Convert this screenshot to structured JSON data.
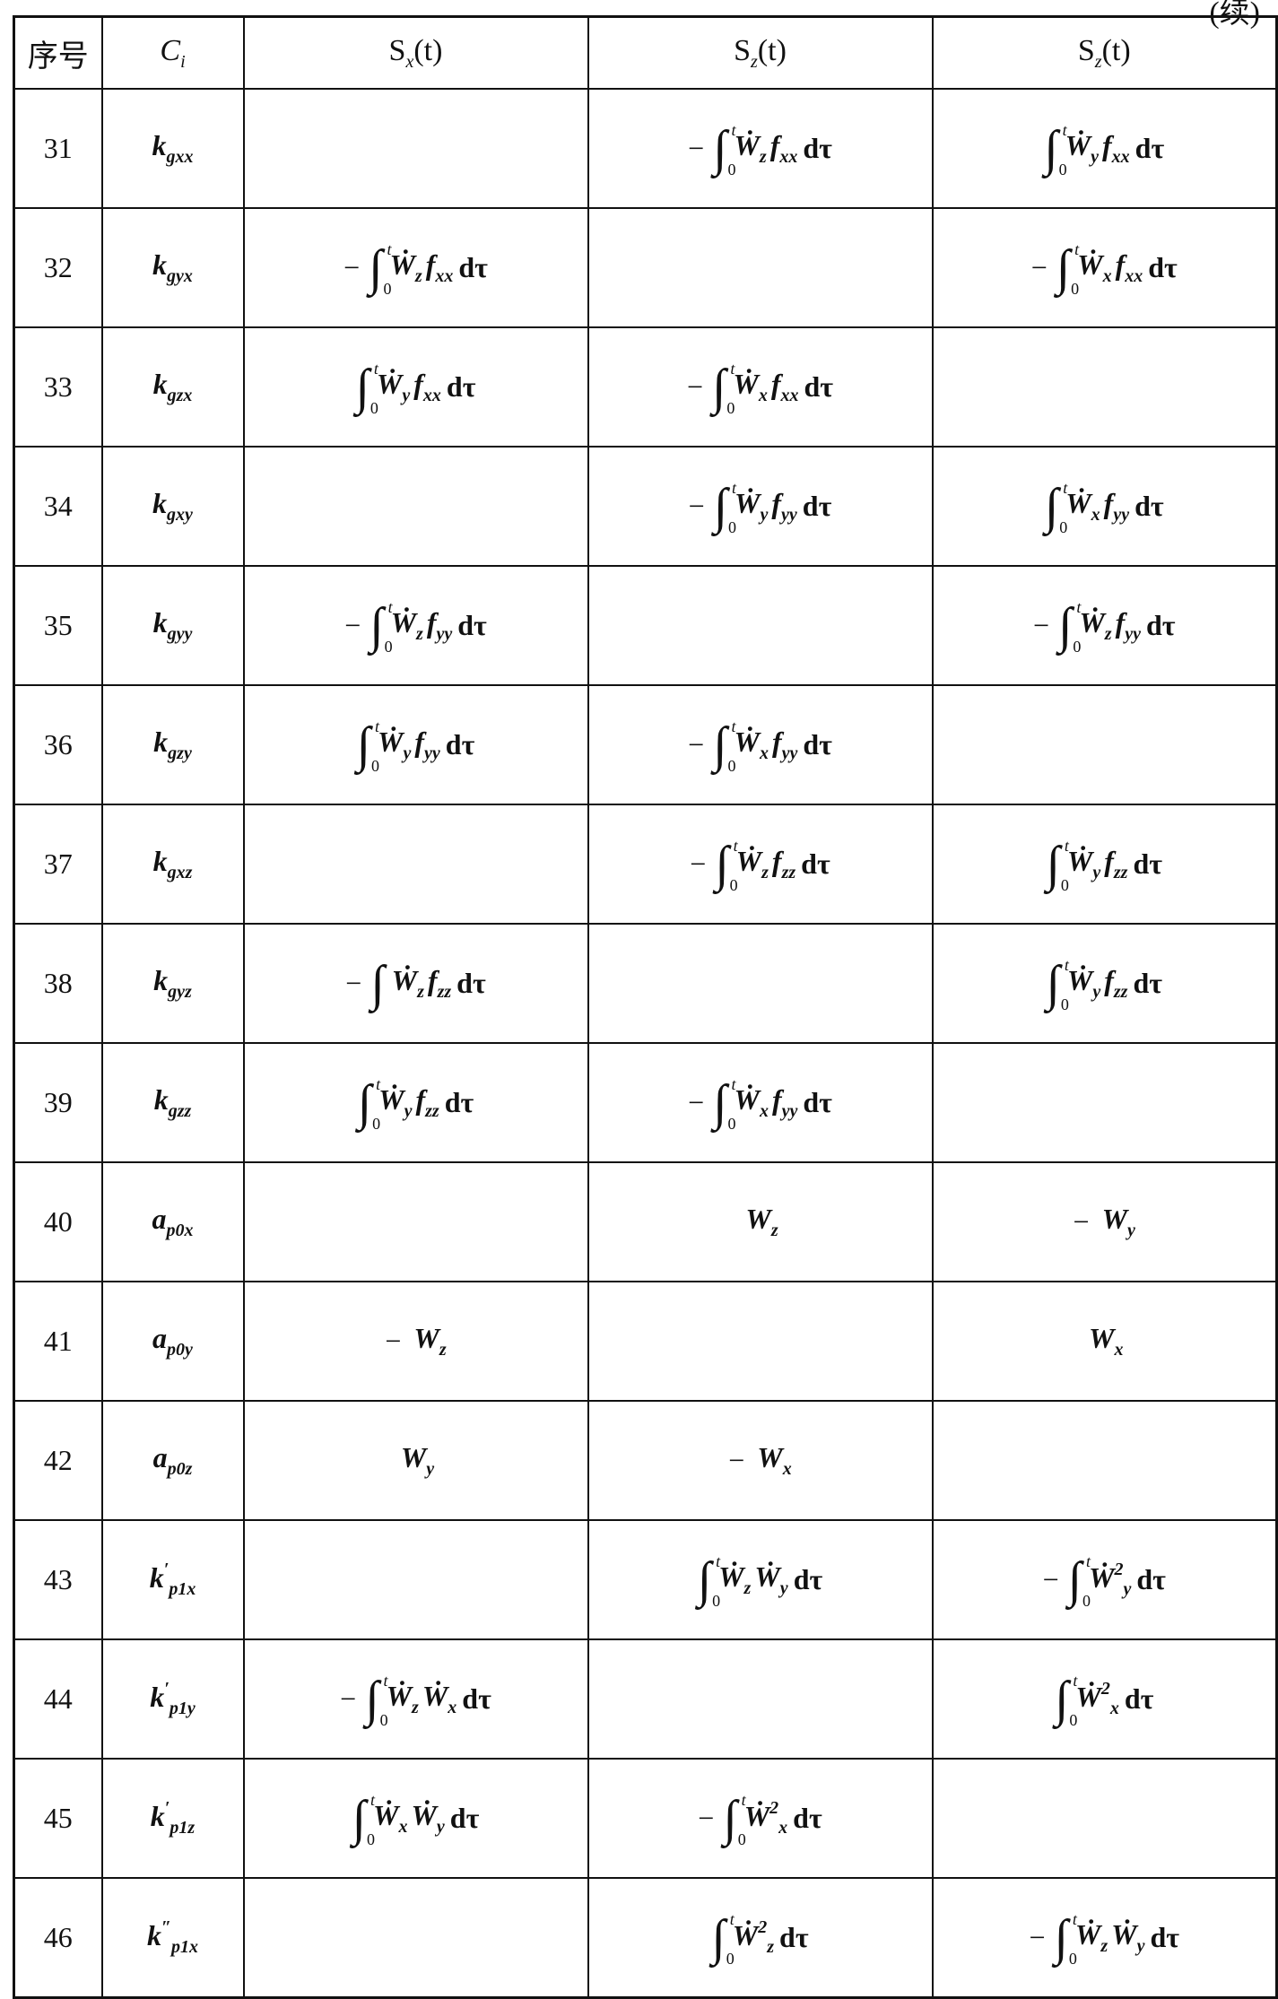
{
  "continued_label": "(续)",
  "headers": {
    "index": "序号",
    "coef": {
      "b": "C",
      "sub": "i"
    },
    "cols": [
      {
        "b": "S",
        "sub": "x",
        "arg": "(t)"
      },
      {
        "b": "S",
        "sub": "z",
        "arg": "(t)"
      },
      {
        "b": "S",
        "sub": "z",
        "arg": "(t)"
      }
    ]
  },
  "rows": [
    {
      "n": "31",
      "c": {
        "b": "k",
        "sub": "gxx"
      },
      "cells": [
        null,
        {
          "s": "−",
          "int": true,
          "t": [
            {
              "b": "Ẇ",
              "sub": "z"
            },
            {
              "b": "f",
              "sub": "xx"
            }
          ],
          "d": "dτ"
        },
        {
          "s": "",
          "int": true,
          "t": [
            {
              "b": "Ẇ",
              "sub": "y"
            },
            {
              "b": "f",
              "sub": "xx"
            }
          ],
          "d": "dτ"
        }
      ]
    },
    {
      "n": "32",
      "c": {
        "b": "k",
        "sub": "gyx"
      },
      "cells": [
        {
          "s": "−",
          "int": true,
          "t": [
            {
              "b": "Ẇ",
              "sub": "z"
            },
            {
              "b": "f",
              "sub": "xx"
            }
          ],
          "d": "dτ"
        },
        null,
        {
          "s": "−",
          "int": true,
          "t": [
            {
              "b": "Ẇ",
              "sub": "x"
            },
            {
              "b": "f",
              "sub": "xx"
            }
          ],
          "d": "dτ"
        }
      ]
    },
    {
      "n": "33",
      "c": {
        "b": "k",
        "sub": "gzx"
      },
      "cells": [
        {
          "s": "",
          "int": true,
          "t": [
            {
              "b": "Ẇ",
              "sub": "y"
            },
            {
              "b": "f",
              "sub": "xx"
            }
          ],
          "d": "dτ"
        },
        {
          "s": "−",
          "int": true,
          "t": [
            {
              "b": "Ẇ",
              "sub": "x"
            },
            {
              "b": "f",
              "sub": "xx"
            }
          ],
          "d": "dτ"
        },
        null
      ]
    },
    {
      "n": "34",
      "c": {
        "b": "k",
        "sub": "gxy"
      },
      "cells": [
        null,
        {
          "s": "−",
          "int": true,
          "t": [
            {
              "b": "Ẇ",
              "sub": "y"
            },
            {
              "b": "f",
              "sub": "yy"
            }
          ],
          "d": "dτ"
        },
        {
          "s": "",
          "int": true,
          "t": [
            {
              "b": "Ẇ",
              "sub": "x"
            },
            {
              "b": "f",
              "sub": "yy"
            }
          ],
          "d": "dτ"
        }
      ]
    },
    {
      "n": "35",
      "c": {
        "b": "k",
        "sub": "gyy"
      },
      "cells": [
        {
          "s": "−",
          "int": true,
          "t": [
            {
              "b": "Ẇ",
              "sub": "z"
            },
            {
              "b": "f",
              "sub": "yy"
            }
          ],
          "d": "dτ"
        },
        null,
        {
          "s": "−",
          "int": true,
          "t": [
            {
              "b": "Ẇ",
              "sub": "z"
            },
            {
              "b": "f",
              "sub": "yy"
            }
          ],
          "d": "dτ"
        }
      ]
    },
    {
      "n": "36",
      "c": {
        "b": "k",
        "sub": "gzy"
      },
      "cells": [
        {
          "s": "",
          "int": true,
          "t": [
            {
              "b": "Ẇ",
              "sub": "y"
            },
            {
              "b": "f",
              "sub": "yy"
            }
          ],
          "d": "dτ"
        },
        {
          "s": "−",
          "int": true,
          "t": [
            {
              "b": "Ẇ",
              "sub": "x"
            },
            {
              "b": "f",
              "sub": "yy"
            }
          ],
          "d": "dτ"
        },
        null
      ]
    },
    {
      "n": "37",
      "c": {
        "b": "k",
        "sub": "gxz"
      },
      "cells": [
        null,
        {
          "s": "−",
          "int": true,
          "t": [
            {
              "b": "Ẇ",
              "sub": "z"
            },
            {
              "b": "f",
              "sub": "zz"
            }
          ],
          "d": "dτ"
        },
        {
          "s": "",
          "int": true,
          "t": [
            {
              "b": "Ẇ",
              "sub": "y"
            },
            {
              "b": "f",
              "sub": "zz"
            }
          ],
          "d": "dτ"
        }
      ]
    },
    {
      "n": "38",
      "c": {
        "b": "k",
        "sub": "gyz"
      },
      "cells": [
        {
          "s": "−",
          "int": true,
          "nolimits": true,
          "t": [
            {
              "b": "Ẇ",
              "sub": "z"
            },
            {
              "b": "f",
              "sub": "zz"
            }
          ],
          "d": "dτ"
        },
        null,
        {
          "s": "",
          "int": true,
          "t": [
            {
              "b": "Ẇ",
              "sub": "y"
            },
            {
              "b": "f",
              "sub": "zz"
            }
          ],
          "d": "dτ"
        }
      ]
    },
    {
      "n": "39",
      "c": {
        "b": "k",
        "sub": "gzz"
      },
      "cells": [
        {
          "s": "",
          "int": true,
          "t": [
            {
              "b": "Ẇ",
              "sub": "y"
            },
            {
              "b": "f",
              "sub": "zz"
            }
          ],
          "d": "dτ"
        },
        {
          "s": "−",
          "int": true,
          "t": [
            {
              "b": "Ẇ",
              "sub": "x"
            },
            {
              "b": "f",
              "sub": "yy"
            }
          ],
          "d": "dτ"
        },
        null
      ]
    },
    {
      "n": "40",
      "c": {
        "b": "a",
        "sub": "p0x"
      },
      "cells": [
        null,
        {
          "s": "",
          "int": false,
          "t": [
            {
              "b": "W",
              "sub": "z"
            }
          ],
          "d": ""
        },
        {
          "s": "−",
          "int": false,
          "t": [
            {
              "b": "W",
              "sub": "y"
            }
          ],
          "d": ""
        }
      ]
    },
    {
      "n": "41",
      "c": {
        "b": "a",
        "sub": "p0y"
      },
      "cells": [
        {
          "s": "−",
          "int": false,
          "t": [
            {
              "b": "W",
              "sub": "z"
            }
          ],
          "d": ""
        },
        null,
        {
          "s": "",
          "int": false,
          "t": [
            {
              "b": "W",
              "sub": "x"
            }
          ],
          "d": ""
        }
      ]
    },
    {
      "n": "42",
      "c": {
        "b": "a",
        "sub": "p0z"
      },
      "cells": [
        {
          "s": "",
          "int": false,
          "t": [
            {
              "b": "W",
              "sub": "y"
            }
          ],
          "d": ""
        },
        {
          "s": "−",
          "int": false,
          "t": [
            {
              "b": "W",
              "sub": "x"
            }
          ],
          "d": ""
        },
        null
      ]
    },
    {
      "n": "43",
      "c": {
        "b": "k",
        "sup": "′",
        "sub": "p1x"
      },
      "cells": [
        null,
        {
          "s": "",
          "int": true,
          "t": [
            {
              "b": "Ẇ",
              "sub": "z"
            },
            {
              "b": "Ẇ",
              "sub": "y"
            }
          ],
          "d": "dτ"
        },
        {
          "s": "−",
          "int": true,
          "t": [
            {
              "b": "Ẇ",
              "sub": "y",
              "sup": "2"
            }
          ],
          "d": "dτ"
        }
      ]
    },
    {
      "n": "44",
      "c": {
        "b": "k",
        "sup": "′",
        "sub": "p1y"
      },
      "cells": [
        {
          "s": "−",
          "int": true,
          "t": [
            {
              "b": "Ẇ",
              "sub": "z"
            },
            {
              "b": "Ẇ",
              "sub": "x"
            }
          ],
          "d": "dτ"
        },
        null,
        {
          "s": "",
          "int": true,
          "t": [
            {
              "b": "Ẇ",
              "sub": "x",
              "sup": "2"
            }
          ],
          "d": "dτ"
        }
      ]
    },
    {
      "n": "45",
      "c": {
        "b": "k",
        "sup": "′",
        "sub": "p1z"
      },
      "cells": [
        {
          "s": "",
          "int": true,
          "t": [
            {
              "b": "Ẇ",
              "sub": "x"
            },
            {
              "b": "Ẇ",
              "sub": "y"
            }
          ],
          "d": "dτ"
        },
        {
          "s": "−",
          "int": true,
          "t": [
            {
              "b": "Ẇ",
              "sub": "x",
              "sup": "2"
            }
          ],
          "d": "dτ"
        },
        null
      ]
    },
    {
      "n": "46",
      "c": {
        "b": "k",
        "sup": "″",
        "sub": "p1x"
      },
      "cells": [
        null,
        {
          "s": "",
          "int": true,
          "t": [
            {
              "b": "Ẇ",
              "sub": "z",
              "sup": "2"
            }
          ],
          "d": "dτ"
        },
        {
          "s": "−",
          "int": true,
          "t": [
            {
              "b": "Ẇ",
              "sub": "z"
            },
            {
              "b": "Ẇ",
              "sub": "y"
            }
          ],
          "d": "dτ"
        }
      ]
    }
  ]
}
